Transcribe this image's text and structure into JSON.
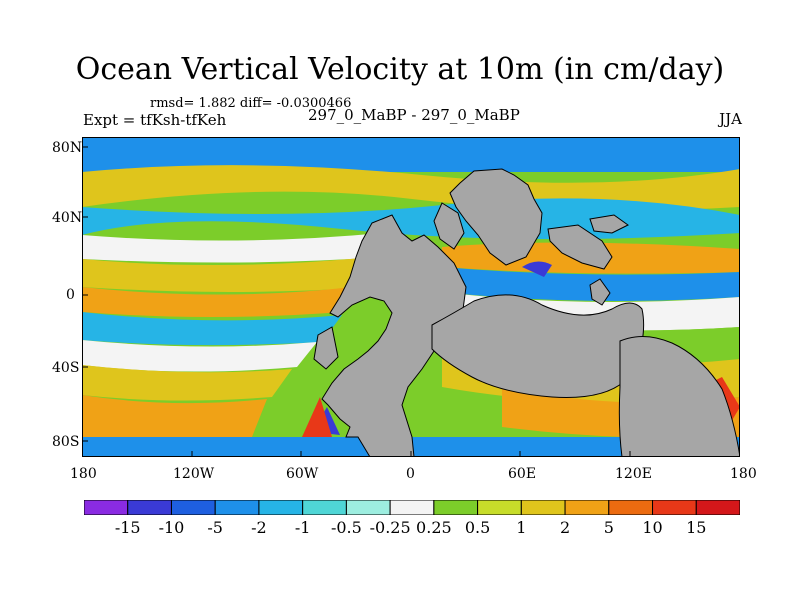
{
  "header": {
    "title": "Ocean Vertical Velocity at 10m (in cm/day)",
    "stats": "rmsd= 1.882 diff= -0.0300466",
    "experiment": "Expt = tfKsh-tfKeh",
    "comparison": "297_0_MaBP - 297_0_MaBP",
    "season": "JJA"
  },
  "axes": {
    "y_ticks": [
      "80N",
      "40N",
      "0",
      "40S",
      "80S"
    ],
    "x_ticks": [
      "180",
      "120W",
      "60W",
      "0",
      "60E",
      "120E",
      "180"
    ]
  },
  "colorbar": {
    "labels": [
      "-15",
      "-10",
      "-5",
      "-2",
      "-1",
      "-0.5",
      "-0.25",
      "0.25",
      "0.5",
      "1",
      "2",
      "5",
      "10",
      "15"
    ],
    "colors": [
      "#8a2be2",
      "#3a3ad6",
      "#1e5fe0",
      "#1e90ea",
      "#26b4e6",
      "#4fd6d6",
      "#9deee0",
      "#f4f4f4",
      "#7ccd2a",
      "#c7dd2a",
      "#dfc51c",
      "#f0a216",
      "#ec6b10",
      "#e83818",
      "#d4171a"
    ]
  },
  "palette": {
    "land": "#a6a6a6",
    "near_zero": "#f4f4f4",
    "positive": "#dfc51c",
    "negative": "#1e90ea"
  }
}
